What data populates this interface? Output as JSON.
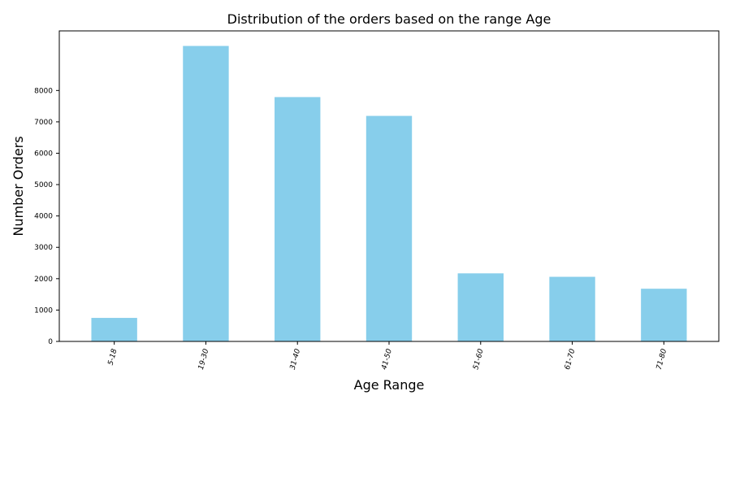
{
  "chart_data": {
    "type": "bar",
    "title": "Distribution of the orders based on the range Age",
    "xlabel": "Age Range",
    "ylabel": "Number Orders",
    "categories": [
      "5-18",
      "19-30",
      "31-40",
      "41-50",
      "51-60",
      "61-70",
      "71-80"
    ],
    "values": [
      750,
      9420,
      7790,
      7190,
      2170,
      2060,
      1680
    ],
    "yticks": [
      0,
      1000,
      2000,
      3000,
      4000,
      5000,
      6000,
      7000,
      8000
    ],
    "ylim": [
      0,
      9900
    ],
    "bar_color": "#87ceeb",
    "grid": false,
    "legend": "none"
  }
}
